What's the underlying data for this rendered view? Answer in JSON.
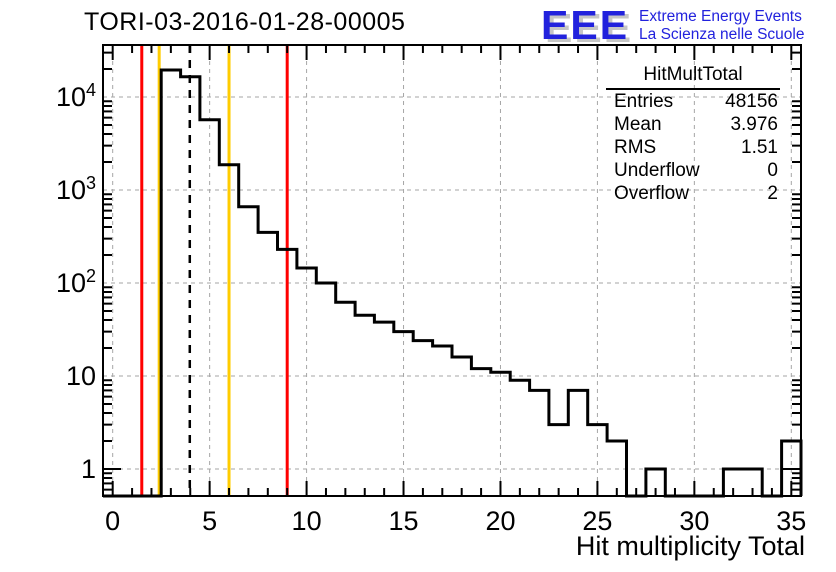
{
  "title": "TORI-03-2016-01-28-00005",
  "logo": {
    "eee": "EEE",
    "line1": "Extreme Energy Events",
    "line2": "La Scienza nelle Scuole",
    "blue": "#2222dd",
    "shadow_gray": "#c6c6c6"
  },
  "stats": {
    "title": "HitMultTotal",
    "rows": [
      {
        "label": "Entries",
        "value": "48156"
      },
      {
        "label": "Mean",
        "value": "3.976"
      },
      {
        "label": "RMS",
        "value": "1.51"
      },
      {
        "label": "Underflow",
        "value": "0"
      },
      {
        "label": "Overflow",
        "value": "2"
      }
    ]
  },
  "chart_data": {
    "type": "bar",
    "title": "TORI-03-2016-01-28-00005",
    "xlabel": "Hit multiplicity Total",
    "ylabel": "",
    "x_range": [
      -0.5,
      35.5
    ],
    "y_scale": "log",
    "y_range": [
      0.5,
      36000
    ],
    "grid": true,
    "first_bin_center": 0,
    "bin_width": 1,
    "values": [
      0,
      0,
      0,
      19500,
      16500,
      5700,
      1870,
      660,
      350,
      230,
      145,
      100,
      62,
      45,
      38,
      30,
      24,
      21,
      16,
      12,
      11,
      9,
      7,
      3,
      7,
      3,
      2,
      0,
      1,
      0,
      0,
      0,
      1,
      1,
      0,
      2
    ],
    "x_ticks": [
      0,
      5,
      10,
      15,
      20,
      25,
      30,
      35
    ],
    "x_minor_tick_step": 1,
    "y_tick_values": [
      1,
      10,
      100,
      1000,
      10000
    ],
    "y_ticks": [
      "1",
      "10",
      "10^2",
      "10^3",
      "10^4"
    ],
    "cut_lines": [
      {
        "x": 1.5,
        "color": "#ff0000",
        "style": "solid"
      },
      {
        "x": 2.5,
        "color": "#ffcc00",
        "style": "solid"
      },
      {
        "x": 3.976,
        "color": "#000000",
        "style": "dashed"
      },
      {
        "x": 6,
        "color": "#ffcc00",
        "style": "solid"
      },
      {
        "x": 9,
        "color": "#ff0000",
        "style": "solid"
      }
    ],
    "colors": {
      "histogram": "#000000",
      "grid": "#a6a6a6",
      "red_cut": "#ff0000",
      "yellow_cut": "#ffcc00"
    },
    "legend_position": "none"
  }
}
